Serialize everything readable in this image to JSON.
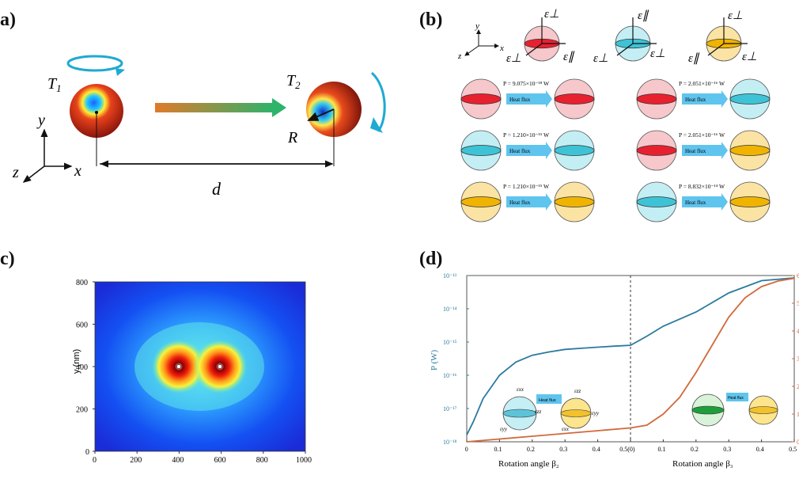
{
  "panel_a": {
    "label": "(a)",
    "t1": "T",
    "t1_sub": "1",
    "t2": "T",
    "t2_sub": "2",
    "r": "R",
    "d": "d",
    "axis_y": "y",
    "axis_z": "z",
    "axis_x": "x"
  },
  "panel_b": {
    "label": "(b)",
    "axis_y": "y",
    "axis_z": "z",
    "axis_x": "x",
    "eps_perp": "ε⊥",
    "eps_par": "ε∥",
    "heat_flux": "Heat flux",
    "rows": [
      {
        "left": "P = 9.075×10⁻¹⁸ W",
        "right": "P = 2.051×10⁻¹⁶ W"
      },
      {
        "left": "P = 1.210×10⁻¹⁵ W",
        "right": "P = 2.051×10⁻¹⁶ W"
      },
      {
        "left": "P = 1.210×10⁻¹⁵ W",
        "right": "P = 8.832×10⁻¹⁴ W"
      }
    ]
  },
  "panel_c": {
    "label": "(c)",
    "ylabel": "y (nm)",
    "xticks": [
      "0",
      "200",
      "400",
      "600",
      "800",
      "1000"
    ],
    "yticks": [
      "0",
      "200",
      "400",
      "600",
      "800"
    ]
  },
  "panel_d": {
    "label": "(d)",
    "ylabel": "P (W)",
    "yticks": [
      "10⁻¹³",
      "10⁻¹⁴",
      "10⁻¹⁵",
      "10⁻¹⁶",
      "10⁻¹⁷",
      "10⁻¹⁸"
    ],
    "right_ticks": [
      "6",
      "5",
      "4",
      "3",
      "2",
      "1",
      "0"
    ],
    "xticks": [
      "0",
      "0.1",
      "0.2",
      "0.3",
      "0.4",
      "0.5(0)",
      "0.1",
      "0.2",
      "0.3",
      "0.4",
      "0.5"
    ],
    "xlabel_left": "Rotation angle β₂",
    "xlabel_right": "Rotation angle β₃",
    "heat_flux": "Heat flux",
    "inset_labels": [
      "εxx",
      "εzz",
      "εyy",
      "εzz",
      "εyy",
      "εxx"
    ]
  },
  "chart_data": {
    "type": "line",
    "ylabel": "P (W)",
    "x_left_label": "Rotation angle β₂",
    "x_right_label": "Rotation angle β₃",
    "y_scale": "log",
    "ylim": [
      1e-18,
      1e-13
    ],
    "right_ylim": [
      0,
      6
    ],
    "series": [
      {
        "color": "#2a7a9e",
        "x": [
          0,
          0.02,
          0.05,
          0.1,
          0.15,
          0.2,
          0.25,
          0.3,
          0.35,
          0.4,
          0.45,
          0.5,
          0.55,
          0.6,
          0.7,
          0.8,
          0.9,
          1.0
        ],
        "y": [
          1.6e-18,
          4e-18,
          2e-17,
          1e-16,
          2.5e-16,
          4e-16,
          5e-16,
          6e-16,
          6.5e-16,
          7e-16,
          7.5e-16,
          8e-16,
          1.5e-15,
          3e-15,
          8e-15,
          3e-14,
          7e-14,
          8.5e-14
        ]
      },
      {
        "color": "#d2693a",
        "x": [
          0,
          0.1,
          0.2,
          0.3,
          0.4,
          0.5,
          0.55,
          0.6,
          0.65,
          0.7,
          0.75,
          0.8,
          0.85,
          0.9,
          0.95,
          1.0
        ],
        "y_right": [
          0,
          0.1,
          0.2,
          0.3,
          0.4,
          0.5,
          0.6,
          1.0,
          1.6,
          2.5,
          3.5,
          4.5,
          5.2,
          5.6,
          5.8,
          5.9
        ]
      }
    ]
  }
}
